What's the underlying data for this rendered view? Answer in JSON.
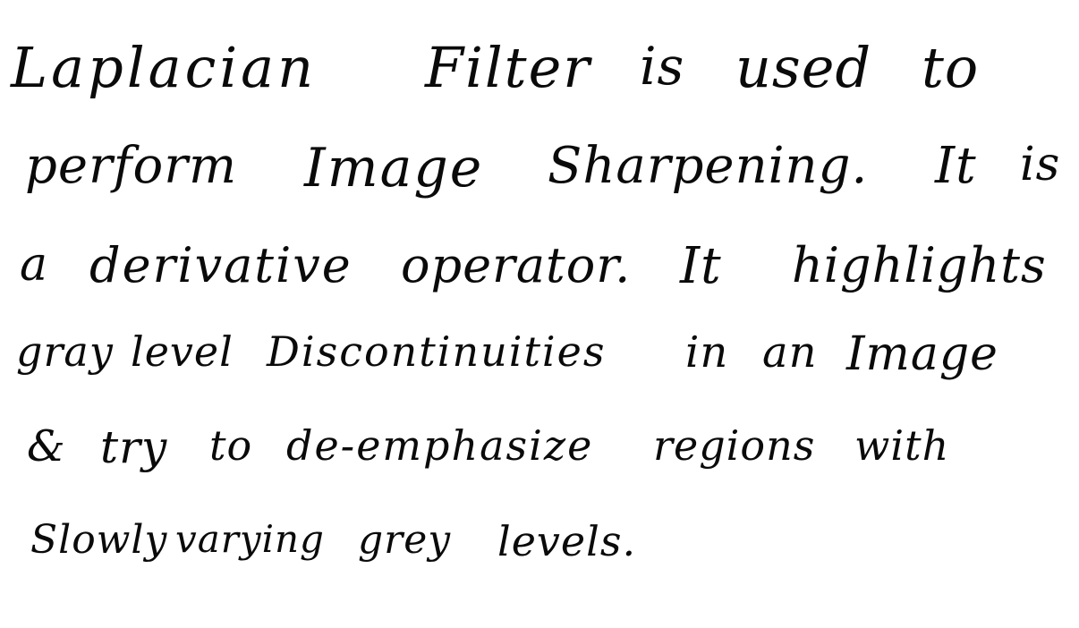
{
  "note": {
    "lines": [
      [
        "Laplacian",
        "Filter",
        "is",
        "used",
        "to"
      ],
      [
        "perform",
        "Image",
        "Sharpening.",
        "It",
        "is"
      ],
      [
        "a",
        "derivative",
        "operator.",
        "It",
        "highlights"
      ],
      [
        "gray",
        "level",
        "Discontinuities",
        "in",
        "an",
        "Image"
      ],
      [
        "&",
        "try",
        "to",
        "de-emphasize",
        "regions",
        "with"
      ],
      [
        "Slowly",
        "varying",
        "grey",
        "levels."
      ]
    ]
  },
  "ink_color": "#0a0a0a",
  "paper_color": "#ffffff"
}
